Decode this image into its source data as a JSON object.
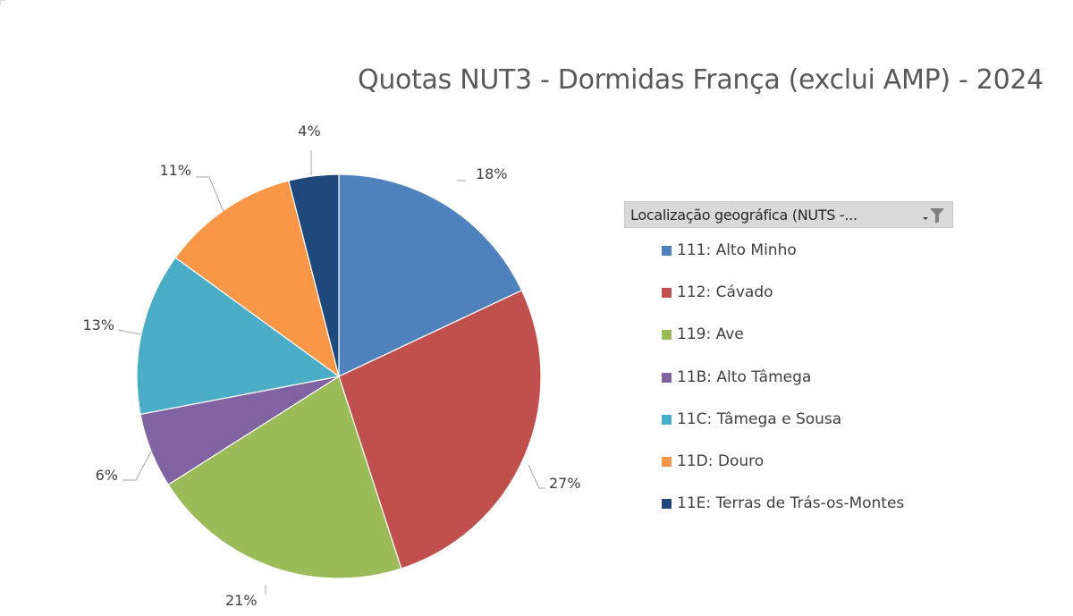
{
  "chart_data": {
    "type": "pie",
    "title": "Quotas NUT3 - Dormidas França (exclui AMP) - 2024",
    "legend_header": "Localização geográfica (NUTS  -...",
    "legend_position": "right",
    "slices": [
      {
        "label": "111: Alto Minho",
        "value": 18,
        "value_label": "18%",
        "color": "#4F81BD"
      },
      {
        "label": "112: Cávado",
        "value": 27,
        "value_label": "27%",
        "color": "#C0504D"
      },
      {
        "label": "119: Ave",
        "value": 21,
        "value_label": "21%",
        "color": "#9BBB59"
      },
      {
        "label": "11B: Alto Tâmega",
        "value": 6,
        "value_label": "6%",
        "color": "#8064A2"
      },
      {
        "label": "11C: Tâmega e Sousa",
        "value": 13,
        "value_label": "13%",
        "color": "#4BACC6"
      },
      {
        "label": "11D: Douro",
        "value": 11,
        "value_label": "11%",
        "color": "#F79646"
      },
      {
        "label": "11E: Terras de Trás-os-Montes",
        "value": 4,
        "value_label": "4%",
        "color": "#1F497D"
      }
    ]
  },
  "icons": {
    "filter": "filter-dropdown-icon"
  }
}
